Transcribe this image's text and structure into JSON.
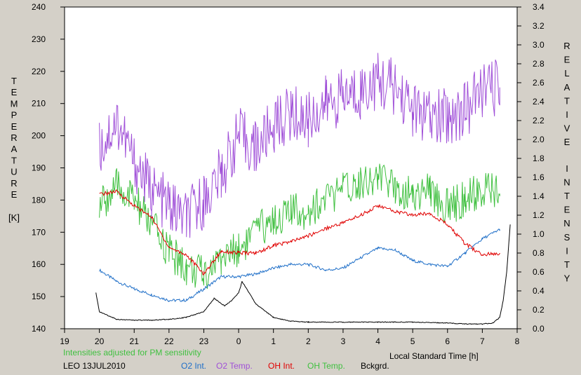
{
  "chart_data": {
    "type": "line",
    "x_axis": {
      "label": "Local Standard Time [h]",
      "ticks": [
        "19",
        "20",
        "21",
        "22",
        "23",
        "0",
        "1",
        "2",
        "3",
        "4",
        "5",
        "6",
        "7",
        "8"
      ],
      "range": [
        19,
        32
      ]
    },
    "y_left": {
      "label": "TEMPERATURE",
      "unit": "[K]",
      "ticks": [
        140,
        150,
        160,
        170,
        180,
        190,
        200,
        210,
        220,
        230,
        240
      ],
      "range": [
        140,
        240
      ]
    },
    "y_right": {
      "label": "RELATIVE INTENSITY",
      "ticks": [
        "0.0",
        "0.2",
        "0.4",
        "0.6",
        "0.8",
        "1.0",
        "1.2",
        "1.4",
        "1.6",
        "1.8",
        "2.0",
        "2.2",
        "2.4",
        "2.6",
        "2.8",
        "3.0",
        "3.2",
        "3.4"
      ],
      "range": [
        0,
        3.4
      ]
    },
    "note": "Intensities adjusted for PM sensitivity",
    "station": "LEO 13JUL2010",
    "grid": false,
    "series": [
      {
        "name": "O2 Int.",
        "axis": "right",
        "color": "#1f6fc8",
        "x": [
          20,
          20.5,
          21,
          21.5,
          22,
          22.5,
          23,
          23.5,
          24,
          24.5,
          25,
          25.5,
          26,
          26.5,
          27,
          27.5,
          28,
          28.5,
          29,
          29.5,
          30,
          30.5,
          31,
          31.5
        ],
        "y": [
          0.62,
          0.5,
          0.42,
          0.36,
          0.3,
          0.3,
          0.42,
          0.55,
          0.55,
          0.58,
          0.64,
          0.68,
          0.68,
          0.62,
          0.64,
          0.75,
          0.85,
          0.83,
          0.72,
          0.68,
          0.66,
          0.8,
          0.95,
          1.05
        ]
      },
      {
        "name": "O2 Temp.",
        "axis": "left",
        "color": "#a050d8",
        "x": [
          20,
          20.5,
          21,
          21.5,
          22,
          22.5,
          23,
          23.5,
          24,
          24.5,
          25,
          25.5,
          26,
          26.5,
          27,
          27.5,
          28,
          28.5,
          29,
          29.5,
          30,
          30.5,
          31,
          31.5
        ],
        "y": [
          196,
          205,
          192,
          183,
          178,
          174,
          180,
          188,
          200,
          196,
          203,
          207,
          205,
          210,
          212,
          214,
          217,
          215,
          208,
          205,
          206,
          208,
          214,
          215
        ]
      },
      {
        "name": "OH Int.",
        "axis": "right",
        "color": "#e00000",
        "x": [
          20,
          20.5,
          21,
          21.5,
          22,
          22.5,
          23,
          23.5,
          24,
          24.5,
          25,
          25.5,
          26,
          26.5,
          27,
          27.5,
          28,
          28.5,
          29,
          29.5,
          30,
          30.5,
          31,
          31.5
        ],
        "y": [
          1.42,
          1.45,
          1.3,
          1.18,
          0.86,
          0.78,
          0.58,
          0.82,
          0.8,
          0.8,
          0.88,
          0.92,
          0.98,
          1.06,
          1.12,
          1.2,
          1.3,
          1.24,
          1.2,
          1.22,
          1.1,
          0.9,
          0.78,
          0.8
        ]
      },
      {
        "name": "OH Temp.",
        "axis": "left",
        "color": "#40c040",
        "x": [
          20,
          20.5,
          21,
          21.5,
          22,
          22.5,
          23,
          23.5,
          24,
          24.5,
          25,
          25.5,
          26,
          26.5,
          27,
          27.5,
          28,
          28.5,
          29,
          29.5,
          30,
          30.5,
          31,
          31.5
        ],
        "y": [
          178,
          184,
          180,
          172,
          164,
          159,
          157,
          162,
          165,
          170,
          174,
          176,
          177,
          180,
          183,
          186,
          187,
          184,
          182,
          183,
          178,
          180,
          183,
          182
        ]
      },
      {
        "name": "Bckgrd.",
        "axis": "right",
        "color": "#000000",
        "x": [
          19.9,
          20,
          20.5,
          21,
          21.5,
          22,
          22.5,
          23,
          23.3,
          23.6,
          23.8,
          24,
          24.1,
          24.5,
          25,
          25.5,
          26,
          27,
          28,
          29,
          30,
          30.5,
          31,
          31.3,
          31.5,
          31.6,
          31.7,
          31.8
        ],
        "y": [
          0.38,
          0.18,
          0.1,
          0.09,
          0.09,
          0.1,
          0.12,
          0.18,
          0.32,
          0.24,
          0.3,
          0.38,
          0.5,
          0.26,
          0.12,
          0.08,
          0.07,
          0.07,
          0.07,
          0.07,
          0.06,
          0.05,
          0.05,
          0.06,
          0.12,
          0.3,
          0.6,
          1.1
        ]
      }
    ]
  }
}
